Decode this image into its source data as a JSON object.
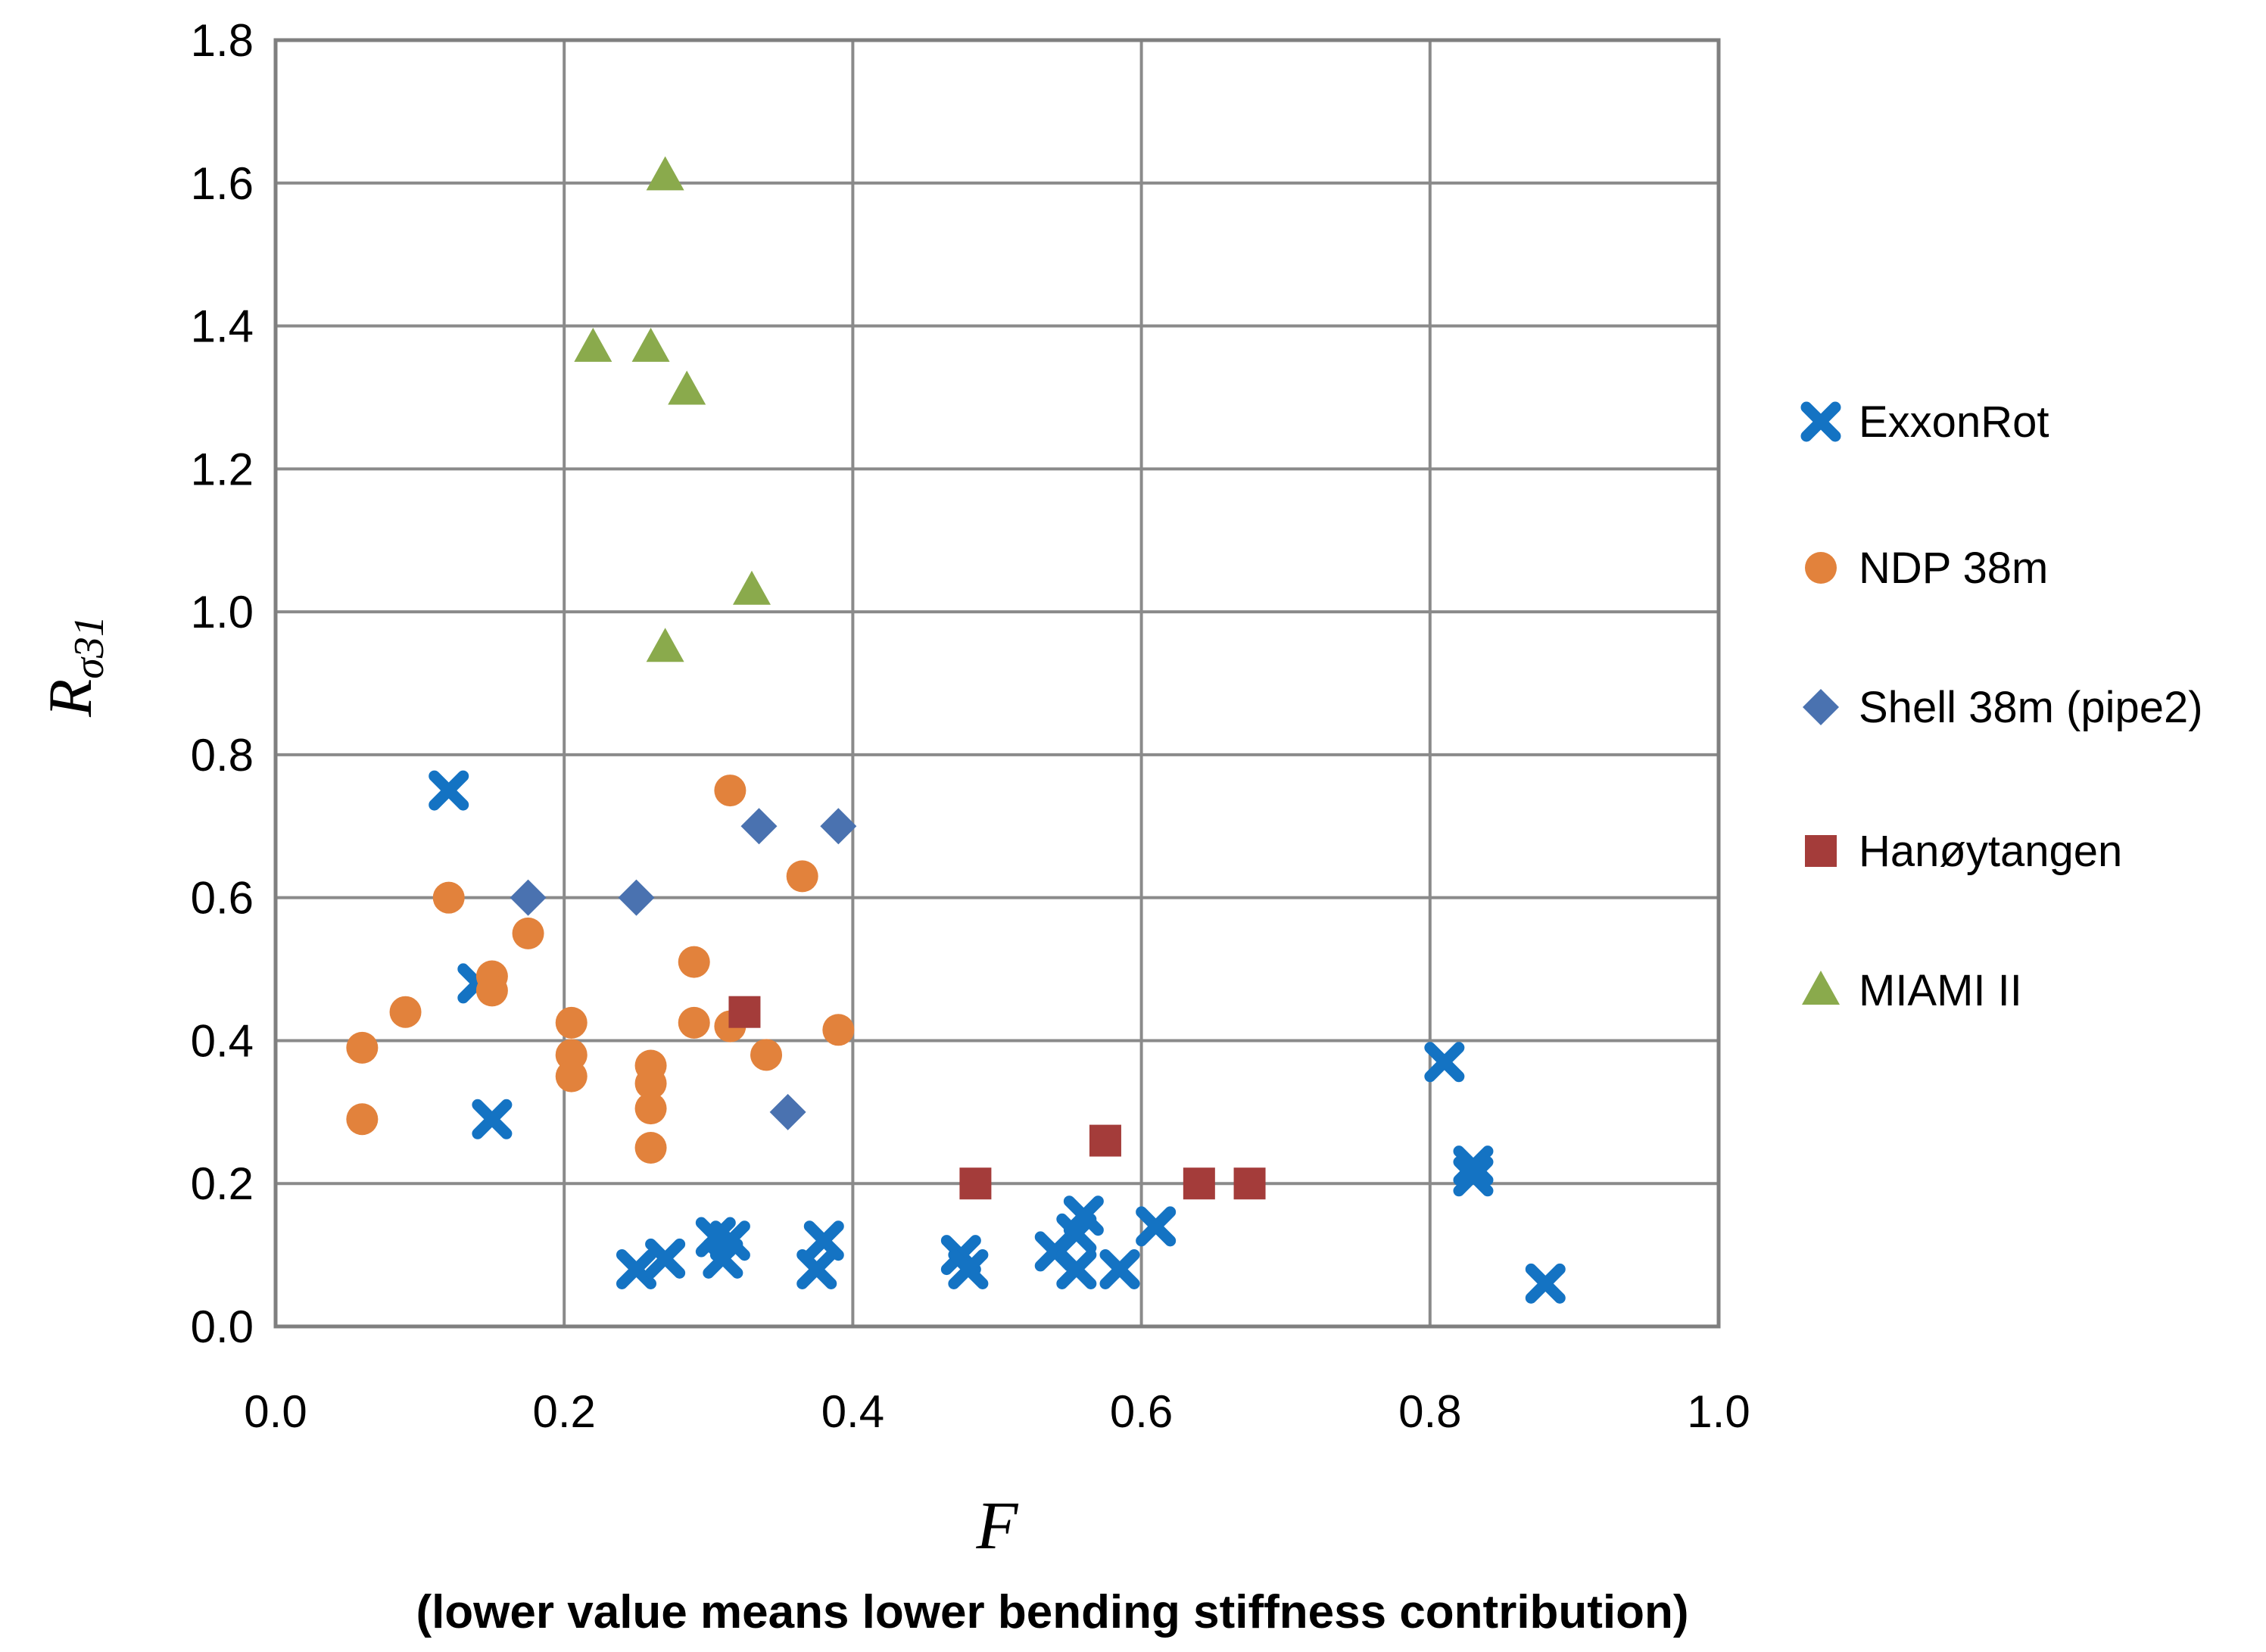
{
  "caption": "(lower value means lower bending stiffness contribution)",
  "axes": {
    "x_title": "F",
    "y_title_main": "R",
    "y_title_sub": "σ31"
  },
  "chart_data": {
    "type": "scatter",
    "title": "",
    "xlabel": "F",
    "ylabel": "R_σ31",
    "xlim": [
      0.0,
      1.0
    ],
    "ylim": [
      0.0,
      1.8
    ],
    "grid": true,
    "legend_position": "right",
    "x_ticks": [
      0.0,
      0.2,
      0.4,
      0.6,
      0.8,
      1.0
    ],
    "y_ticks": [
      0.0,
      0.2,
      0.4,
      0.6,
      0.8,
      1.0,
      1.2,
      1.4,
      1.6,
      1.8
    ],
    "x_tick_labels": [
      "0.0",
      "0.2",
      "0.4",
      "0.6",
      "0.8",
      "1.0"
    ],
    "y_tick_labels": [
      "0.0",
      "0.2",
      "0.4",
      "0.6",
      "0.8",
      "1.0",
      "1.2",
      "1.4",
      "1.6",
      "1.8"
    ],
    "grid_color": "#8a8a8a",
    "border_color": "#7f7f7f",
    "series": [
      {
        "name": "ExxonRot",
        "marker": "x",
        "color": "#1473c3",
        "points": [
          [
            0.12,
            0.75
          ],
          [
            0.14,
            0.48
          ],
          [
            0.15,
            0.29
          ],
          [
            0.25,
            0.08
          ],
          [
            0.27,
            0.095
          ],
          [
            0.305,
            0.125
          ],
          [
            0.315,
            0.12
          ],
          [
            0.31,
            0.095
          ],
          [
            0.38,
            0.12
          ],
          [
            0.375,
            0.08
          ],
          [
            0.475,
            0.1
          ],
          [
            0.48,
            0.08
          ],
          [
            0.54,
            0.105
          ],
          [
            0.555,
            0.13
          ],
          [
            0.56,
            0.155
          ],
          [
            0.555,
            0.08
          ],
          [
            0.585,
            0.08
          ],
          [
            0.61,
            0.14
          ],
          [
            0.81,
            0.37
          ],
          [
            0.83,
            0.225
          ],
          [
            0.83,
            0.21
          ],
          [
            0.88,
            0.06
          ]
        ]
      },
      {
        "name": "NDP 38m",
        "marker": "circle",
        "color": "#e2823c",
        "points": [
          [
            0.06,
            0.39
          ],
          [
            0.06,
            0.29
          ],
          [
            0.09,
            0.44
          ],
          [
            0.12,
            0.6
          ],
          [
            0.15,
            0.49
          ],
          [
            0.15,
            0.47
          ],
          [
            0.175,
            0.55
          ],
          [
            0.205,
            0.425
          ],
          [
            0.205,
            0.38
          ],
          [
            0.205,
            0.35
          ],
          [
            0.26,
            0.365
          ],
          [
            0.26,
            0.34
          ],
          [
            0.26,
            0.305
          ],
          [
            0.26,
            0.25
          ],
          [
            0.29,
            0.51
          ],
          [
            0.29,
            0.425
          ],
          [
            0.315,
            0.75
          ],
          [
            0.315,
            0.42
          ],
          [
            0.34,
            0.38
          ],
          [
            0.365,
            0.63
          ],
          [
            0.39,
            0.415
          ]
        ]
      },
      {
        "name": "Shell 38m (pipe2)",
        "marker": "diamond",
        "color": "#4a72b0",
        "points": [
          [
            0.175,
            0.6
          ],
          [
            0.25,
            0.6
          ],
          [
            0.335,
            0.7
          ],
          [
            0.39,
            0.7
          ],
          [
            0.355,
            0.3
          ]
        ]
      },
      {
        "name": "Hanøytangen",
        "marker": "square",
        "color": "#a43c3a",
        "points": [
          [
            0.325,
            0.44
          ],
          [
            0.485,
            0.2
          ],
          [
            0.575,
            0.26
          ],
          [
            0.64,
            0.2
          ],
          [
            0.675,
            0.2
          ]
        ]
      },
      {
        "name": "MIAMI II",
        "marker": "triangle",
        "color": "#8aaa4c",
        "points": [
          [
            0.27,
            1.61
          ],
          [
            0.22,
            1.37
          ],
          [
            0.26,
            1.37
          ],
          [
            0.285,
            1.31
          ],
          [
            0.33,
            1.03
          ],
          [
            0.27,
            0.95
          ]
        ]
      }
    ]
  }
}
